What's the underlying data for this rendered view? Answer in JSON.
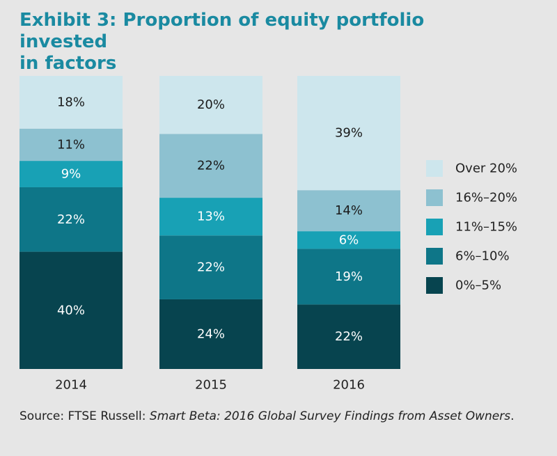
{
  "title": {
    "line1": "Exhibit 3: Proportion of equity portfolio invested",
    "line2": "in factors"
  },
  "source": {
    "prefix": "Source: FTSE Russell: ",
    "italic": "Smart Beta: 2016 Global Survey Findings from Asset Owners",
    "suffix": "."
  },
  "chart_data": {
    "type": "bar",
    "stacked": true,
    "percent_stacked": true,
    "categories": [
      "2014",
      "2015",
      "2016"
    ],
    "series": [
      {
        "name": "0%–5%",
        "values": [
          40,
          24,
          22
        ],
        "color": "#07444f"
      },
      {
        "name": "6%–10%",
        "values": [
          22,
          22,
          19
        ],
        "color": "#0e7688"
      },
      {
        "name": "11%–15%",
        "values": [
          9,
          13,
          6
        ],
        "color": "#18a1b5"
      },
      {
        "name": "16%–20%",
        "values": [
          11,
          22,
          14
        ],
        "color": "#8dc1d0"
      },
      {
        "name": "Over 20%",
        "values": [
          18,
          20,
          39
        ],
        "color": "#cde6ed"
      }
    ],
    "data_labels": [
      [
        "40%",
        "24%",
        "22%"
      ],
      [
        "22%",
        "22%",
        "19%"
      ],
      [
        "9%",
        "13%",
        "6%"
      ],
      [
        "11%",
        "22%",
        "14%"
      ],
      [
        "18%",
        "20%",
        "39%"
      ]
    ],
    "label_colors": {
      "dark": "#ffffff",
      "light": "#1a1a1a"
    },
    "legend_position": "right",
    "legend_order": [
      "Over 20%",
      "16%–20%",
      "11%–15%",
      "6%–10%",
      "0%–5%"
    ],
    "grid": false,
    "ylim": [
      0,
      100
    ]
  }
}
